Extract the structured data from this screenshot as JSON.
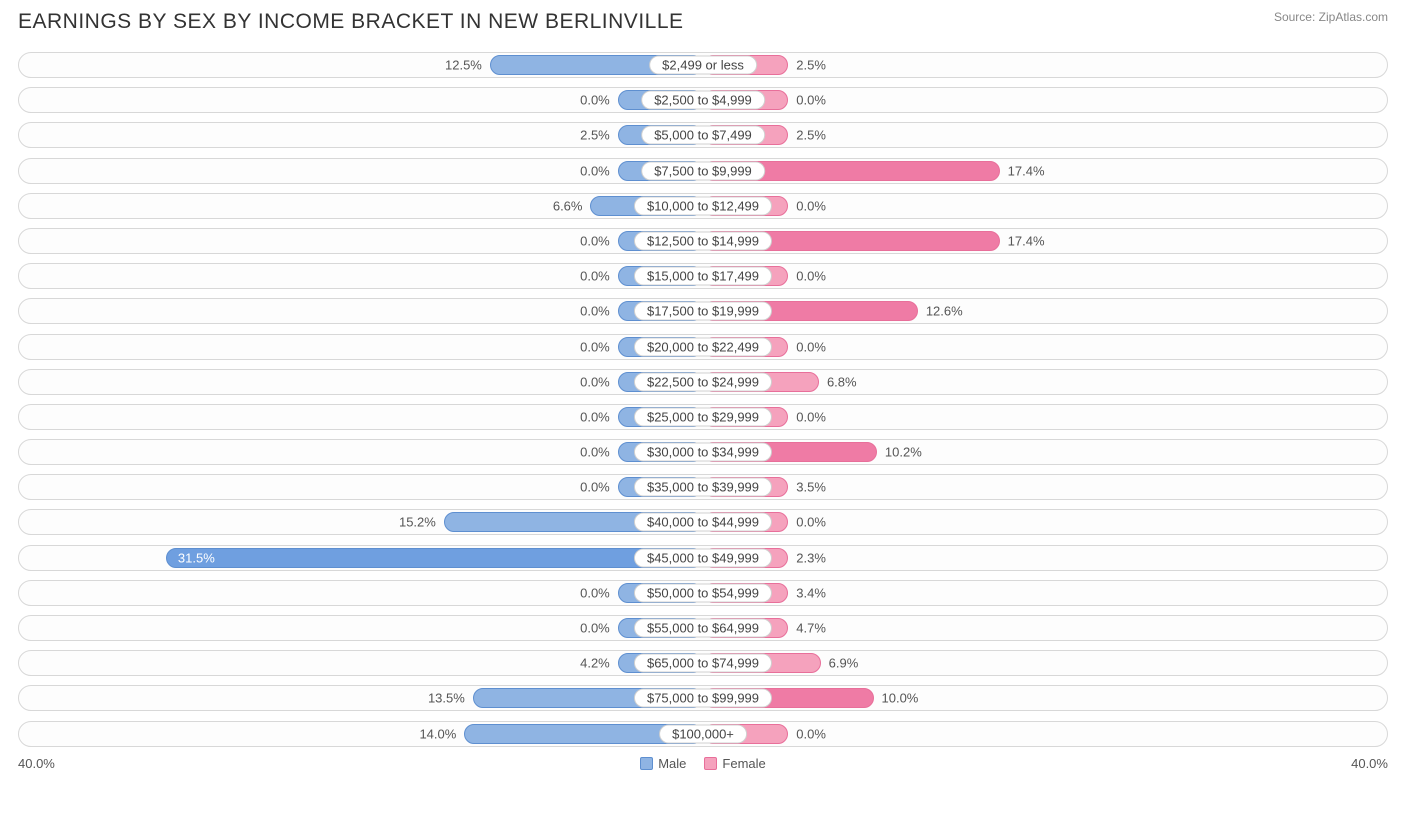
{
  "title": "EARNINGS BY SEX BY INCOME BRACKET IN NEW BERLINVILLE",
  "source": "Source: ZipAtlas.com",
  "axis_max_label": "40.0%",
  "axis_max": 40.0,
  "colors": {
    "male_fill": "#8fb4e3",
    "male_border": "#5e8fd0",
    "female_fill": "#f5a2bd",
    "female_border": "#e86f9a",
    "male_fill_emph": "#6f9fe0",
    "female_fill_emph": "#ef7ba5",
    "row_border": "#d8d8d8",
    "row_bg": "#fdfdfd",
    "text": "#555",
    "title_text": "#333",
    "source_text": "#888"
  },
  "legend": {
    "male": "Male",
    "female": "Female"
  },
  "min_bar_pct": 5.0,
  "rows": [
    {
      "label": "$2,499 or less",
      "male": 12.5,
      "female": 2.5
    },
    {
      "label": "$2,500 to $4,999",
      "male": 0.0,
      "female": 0.0
    },
    {
      "label": "$5,000 to $7,499",
      "male": 2.5,
      "female": 2.5
    },
    {
      "label": "$7,500 to $9,999",
      "male": 0.0,
      "female": 17.4
    },
    {
      "label": "$10,000 to $12,499",
      "male": 6.6,
      "female": 0.0
    },
    {
      "label": "$12,500 to $14,999",
      "male": 0.0,
      "female": 17.4
    },
    {
      "label": "$15,000 to $17,499",
      "male": 0.0,
      "female": 0.0
    },
    {
      "label": "$17,500 to $19,999",
      "male": 0.0,
      "female": 12.6
    },
    {
      "label": "$20,000 to $22,499",
      "male": 0.0,
      "female": 0.0
    },
    {
      "label": "$22,500 to $24,999",
      "male": 0.0,
      "female": 6.8
    },
    {
      "label": "$25,000 to $29,999",
      "male": 0.0,
      "female": 0.0
    },
    {
      "label": "$30,000 to $34,999",
      "male": 0.0,
      "female": 10.2
    },
    {
      "label": "$35,000 to $39,999",
      "male": 0.0,
      "female": 3.5
    },
    {
      "label": "$40,000 to $44,999",
      "male": 15.2,
      "female": 0.0
    },
    {
      "label": "$45,000 to $49,999",
      "male": 31.5,
      "female": 2.3
    },
    {
      "label": "$50,000 to $54,999",
      "male": 0.0,
      "female": 3.4
    },
    {
      "label": "$55,000 to $64,999",
      "male": 0.0,
      "female": 4.7
    },
    {
      "label": "$65,000 to $74,999",
      "male": 4.2,
      "female": 6.9
    },
    {
      "label": "$75,000 to $99,999",
      "male": 13.5,
      "female": 10.0
    },
    {
      "label": "$100,000+",
      "male": 14.0,
      "female": 0.0
    }
  ]
}
